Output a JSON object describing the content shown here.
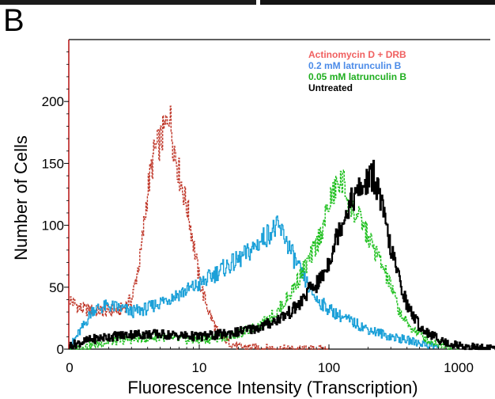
{
  "panel_label": "B",
  "colors": {
    "untreated": "#000000",
    "latB_005": "#1fc01f",
    "latB_02": "#1ba0d8",
    "actD": "#c0392b",
    "legend_actD": "#f06060",
    "legend_latB_02": "#4b8be8",
    "legend_latB_005": "#1fae1f",
    "legend_untreated": "#000000",
    "frame": "#000000",
    "y_axis_line": "#b00000",
    "top_strip": "#1b1b1b"
  },
  "chart_data": {
    "type": "line",
    "title": "",
    "xlabel": "Fluorescence Intensity (Transcription)",
    "ylabel": "Number of Cells",
    "x_scale": "log",
    "xlim": [
      1,
      2000
    ],
    "ylim": [
      0,
      250
    ],
    "x_ticks": [
      1,
      10,
      100,
      1000
    ],
    "x_tick_labels": [
      "0",
      "10",
      "100",
      "1000"
    ],
    "y_ticks": [
      0,
      50,
      100,
      150,
      200
    ],
    "y_tick_labels": [
      "0",
      "50",
      "100",
      "150",
      "200"
    ],
    "grid": false,
    "legend_position": "top-right",
    "series": [
      {
        "name": "Actinomycin D + DRB",
        "color_key": "actD",
        "legend_color_key": "legend_actD",
        "x": [
          1,
          1.2,
          1.5,
          2,
          2.5,
          3,
          3.5,
          4,
          4.5,
          5,
          5.5,
          5.8,
          6.2,
          7,
          8,
          9,
          10,
          11,
          12,
          14,
          17,
          20,
          30,
          50,
          100
        ],
        "y": [
          40,
          33,
          31,
          31,
          32,
          40,
          75,
          130,
          160,
          168,
          180,
          195,
          170,
          140,
          115,
          85,
          55,
          40,
          28,
          12,
          5,
          2,
          1,
          0,
          0
        ]
      },
      {
        "name": "0.2 mM latrunculin B",
        "color_key": "latB_02",
        "legend_color_key": "legend_latB_02",
        "x": [
          1,
          1.3,
          1.5,
          2,
          2.5,
          3,
          4,
          5,
          7,
          10,
          14,
          20,
          25,
          30,
          35,
          40,
          45,
          50,
          60,
          70,
          80,
          100,
          130,
          200,
          300,
          500,
          700
        ],
        "y": [
          2,
          20,
          32,
          35,
          33,
          30,
          33,
          38,
          45,
          52,
          63,
          72,
          80,
          88,
          95,
          98,
          92,
          80,
          62,
          50,
          40,
          32,
          25,
          16,
          10,
          5,
          2
        ]
      },
      {
        "name": "0.05 mM latrunculin B",
        "color_key": "latB_005",
        "legend_color_key": "legend_latB_005",
        "x": [
          1,
          1.5,
          2,
          3,
          5,
          7,
          10,
          15,
          20,
          30,
          40,
          50,
          60,
          70,
          80,
          90,
          100,
          110,
          120,
          130,
          140,
          160,
          180,
          200,
          250,
          300,
          350,
          400,
          500,
          600,
          800,
          1000
        ],
        "y": [
          0,
          3,
          6,
          8,
          10,
          8,
          7,
          10,
          12,
          20,
          30,
          45,
          60,
          72,
          85,
          100,
          118,
          128,
          135,
          134,
          120,
          108,
          102,
          90,
          70,
          50,
          30,
          20,
          12,
          6,
          3,
          1
        ]
      },
      {
        "name": "Untreated",
        "color_key": "untreated",
        "legend_color_key": "legend_untreated",
        "x": [
          1,
          1.5,
          2,
          3,
          5,
          7,
          10,
          15,
          20,
          30,
          40,
          50,
          60,
          70,
          80,
          90,
          100,
          120,
          140,
          160,
          180,
          200,
          220,
          240,
          260,
          300,
          350,
          400,
          500,
          600,
          700,
          800,
          1000,
          1200,
          1500,
          2000
        ],
        "y": [
          3,
          8,
          10,
          12,
          12,
          11,
          10,
          12,
          14,
          18,
          24,
          30,
          37,
          48,
          52,
          60,
          72,
          98,
          115,
          125,
          130,
          137,
          140,
          128,
          110,
          80,
          55,
          35,
          18,
          12,
          8,
          5,
          3,
          2,
          1,
          0
        ]
      }
    ]
  }
}
